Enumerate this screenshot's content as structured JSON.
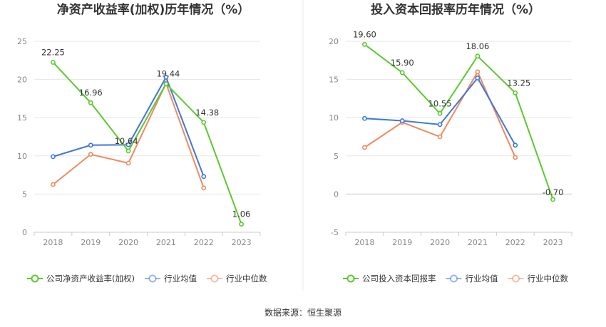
{
  "source_label": "数据来源：恒生聚源",
  "chart_data": [
    {
      "type": "line",
      "title": "净资产收益率(加权)历年情况（%）",
      "categories": [
        "2018",
        "2019",
        "2020",
        "2021",
        "2022",
        "2023"
      ],
      "ylim": [
        0,
        25
      ],
      "yticks": [
        0,
        5,
        10,
        15,
        20,
        25
      ],
      "grid": true,
      "legend_position": "bottom-left",
      "series": [
        {
          "name": "公司净资产收益率(加权)",
          "color": "#5cc92f",
          "values": [
            22.25,
            16.96,
            10.64,
            19.44,
            14.38,
            1.06
          ],
          "labels": [
            "22.25",
            "16.96",
            "10.64",
            "19.44",
            "14.38",
            "1.06"
          ]
        },
        {
          "name": "行业均值",
          "color": "#3f78d8",
          "values": [
            9.9,
            11.4,
            11.45,
            20.3,
            7.3,
            null
          ]
        },
        {
          "name": "行业中位数",
          "color": "#ef8a5f",
          "values": [
            6.25,
            10.2,
            9.05,
            19.5,
            5.8,
            null
          ]
        }
      ]
    },
    {
      "type": "line",
      "title": "投入资本回报率历年情况（%）",
      "categories": [
        "2018",
        "2019",
        "2020",
        "2021",
        "2022",
        "2023"
      ],
      "ylim": [
        -5,
        20
      ],
      "yticks": [
        -5,
        0,
        5,
        10,
        15,
        20
      ],
      "grid": true,
      "legend_position": "bottom-left",
      "series": [
        {
          "name": "公司投入资本回报率",
          "color": "#5cc92f",
          "values": [
            19.6,
            15.9,
            10.55,
            18.06,
            13.25,
            -0.7
          ],
          "labels": [
            "19.60",
            "15.90",
            "10.55",
            "18.06",
            "13.25",
            "-0.70"
          ]
        },
        {
          "name": "行业均值",
          "color": "#3f78d8",
          "values": [
            9.9,
            9.6,
            9.1,
            15.2,
            6.4,
            null
          ]
        },
        {
          "name": "行业中位数",
          "color": "#ef8a5f",
          "values": [
            6.1,
            9.4,
            7.5,
            16.0,
            4.8,
            null
          ]
        }
      ]
    }
  ]
}
